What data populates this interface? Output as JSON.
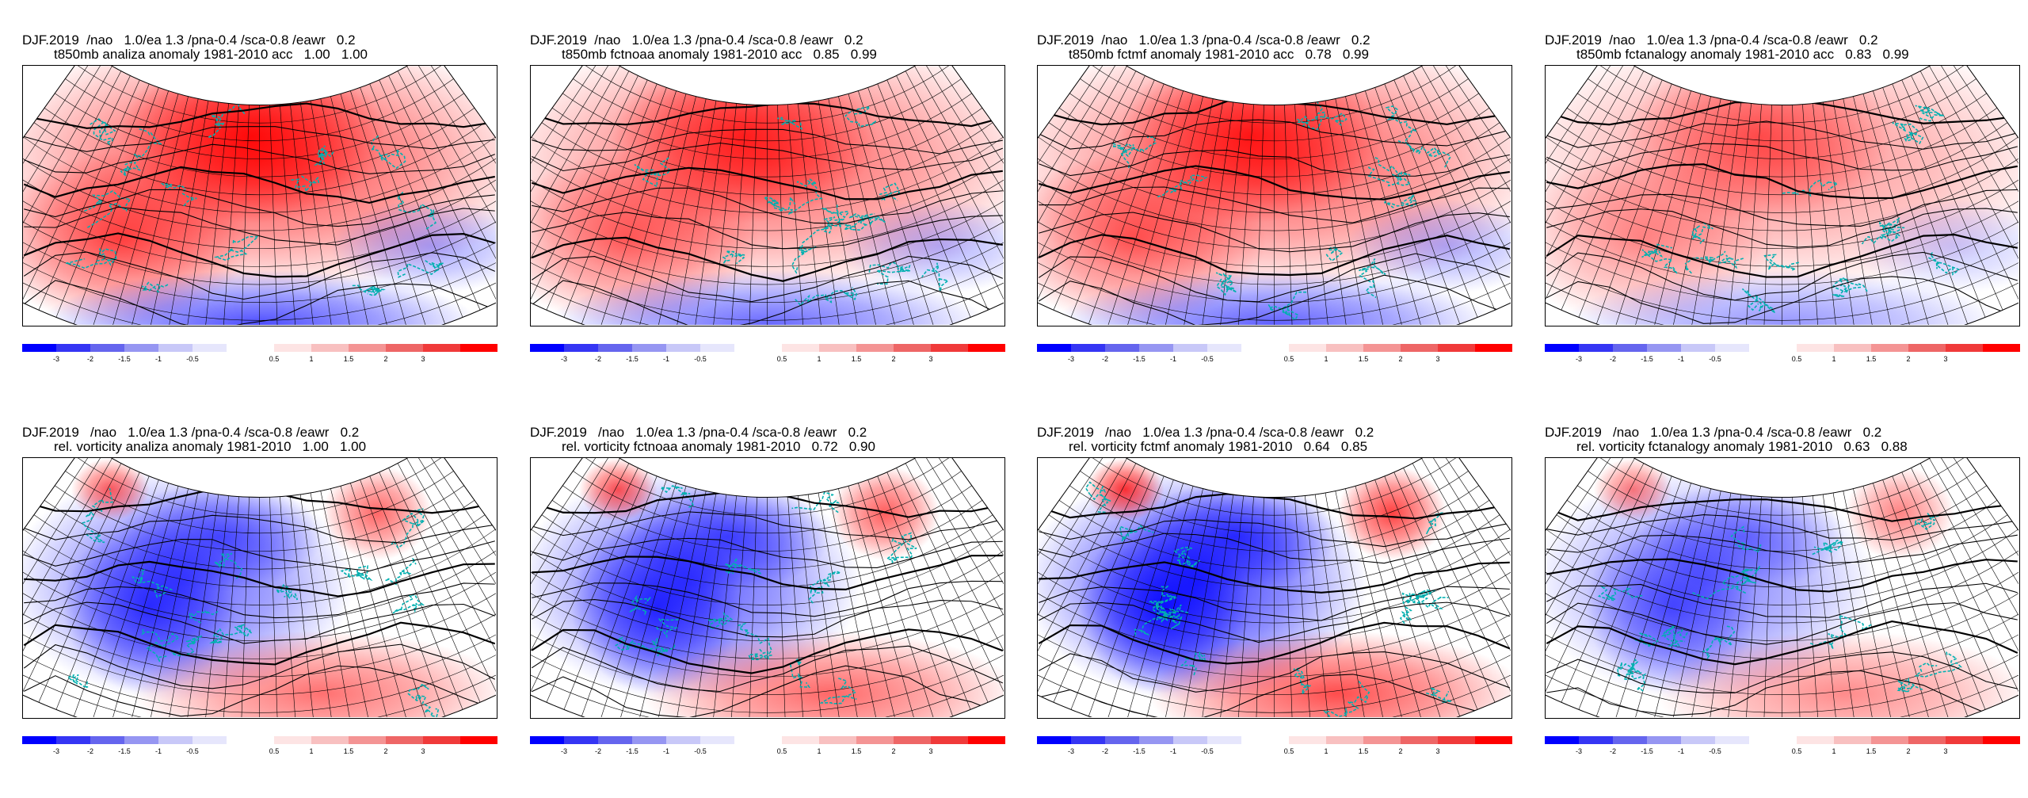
{
  "panels": [
    {
      "title_line1": "DJF.2019  /nao   1.0/ea 1.3 /pna-0.4 /sca-0.8 /eawr   0.2",
      "title_line2": "t850mb analiza anomaly 1981-2010 acc   1.00   1.00",
      "variable": "t850mb",
      "source": "analiza",
      "acc": [
        "1.00",
        "1.00"
      ],
      "pattern": "warm-north",
      "intensity": 1.0
    },
    {
      "title_line1": "DJF.2019  /nao   1.0/ea 1.3 /pna-0.4 /sca-0.8 /eawr   0.2",
      "title_line2": "t850mb fctnoaa anomaly 1981-2010 acc   0.85   0.99",
      "variable": "t850mb",
      "source": "fctnoaa",
      "acc": [
        "0.85",
        "0.99"
      ],
      "pattern": "warm-north",
      "intensity": 0.85
    },
    {
      "title_line1": "DJF.2019  /nao   1.0/ea 1.3 /pna-0.4 /sca-0.8 /eawr   0.2",
      "title_line2": "t850mb fctmf anomaly 1981-2010 acc   0.78   0.99",
      "variable": "t850mb",
      "source": "fctmf",
      "acc": [
        "0.78",
        "0.99"
      ],
      "pattern": "warm-north",
      "intensity": 0.9
    },
    {
      "title_line1": "DJF.2019  /nao   1.0/ea 1.3 /pna-0.4 /sca-0.8 /eawr   0.2",
      "title_line2": "t850mb fctanalogy anomaly 1981-2010 acc   0.83   0.99",
      "variable": "t850mb",
      "source": "fctanalogy",
      "acc": [
        "0.83",
        "0.99"
      ],
      "pattern": "warm-north",
      "intensity": 0.6
    },
    {
      "title_line1": "DJF.2019   /nao   1.0/ea 1.3 /pna-0.4 /sca-0.8 /eawr   0.2",
      "title_line2": "rel. vorticity analiza anomaly 1981-2010   1.00   1.00",
      "variable": "rel. vorticity",
      "source": "analiza",
      "acc": [
        "1.00",
        "1.00"
      ],
      "pattern": "cold-north",
      "intensity": 0.8
    },
    {
      "title_line1": "DJF.2019   /nao   1.0/ea 1.3 /pna-0.4 /sca-0.8 /eawr   0.2",
      "title_line2": "rel. vorticity fctnoaa anomaly 1981-2010   0.72   0.90",
      "variable": "rel. vorticity",
      "source": "fctnoaa",
      "acc": [
        "0.72",
        "0.90"
      ],
      "pattern": "cold-north",
      "intensity": 0.85
    },
    {
      "title_line1": "DJF.2019   /nao   1.0/ea 1.3 /pna-0.4 /sca-0.8 /eawr   0.2",
      "title_line2": "rel. vorticity fctmf anomaly 1981-2010   0.64   0.85",
      "variable": "rel. vorticity",
      "source": "fctmf",
      "acc": [
        "0.64",
        "0.85"
      ],
      "pattern": "cold-north",
      "intensity": 1.0
    },
    {
      "title_line1": "DJF.2019   /nao   1.0/ea 1.3 /pna-0.4 /sca-0.8 /eawr   0.2",
      "title_line2": "rel. vorticity fctanalogy anomaly 1981-2010   0.63   0.88",
      "variable": "rel. vorticity",
      "source": "fctanalogy",
      "acc": [
        "0.63",
        "0.88"
      ],
      "pattern": "cold-north",
      "intensity": 0.65
    }
  ],
  "colorbar": {
    "negative_labels": [
      "-3",
      "-2",
      "-1.5",
      "-1",
      "-0.5"
    ],
    "positive_labels": [
      "0.5",
      "1",
      "1.5",
      "2",
      "3"
    ],
    "negative_colors": [
      "#0000ff",
      "#3535f4",
      "#6565ee",
      "#9696f2",
      "#c8c8f8",
      "#e6e6fc"
    ],
    "positive_colors": [
      "#fde4e4",
      "#f8c0c0",
      "#f49494",
      "#ee6666",
      "#f03a3a",
      "#ff0000"
    ]
  },
  "colors": {
    "warm": "#ff0000",
    "cold": "#0000ff",
    "coastline": "#00b0b0",
    "contour": "#000000",
    "grid": "#000000"
  }
}
